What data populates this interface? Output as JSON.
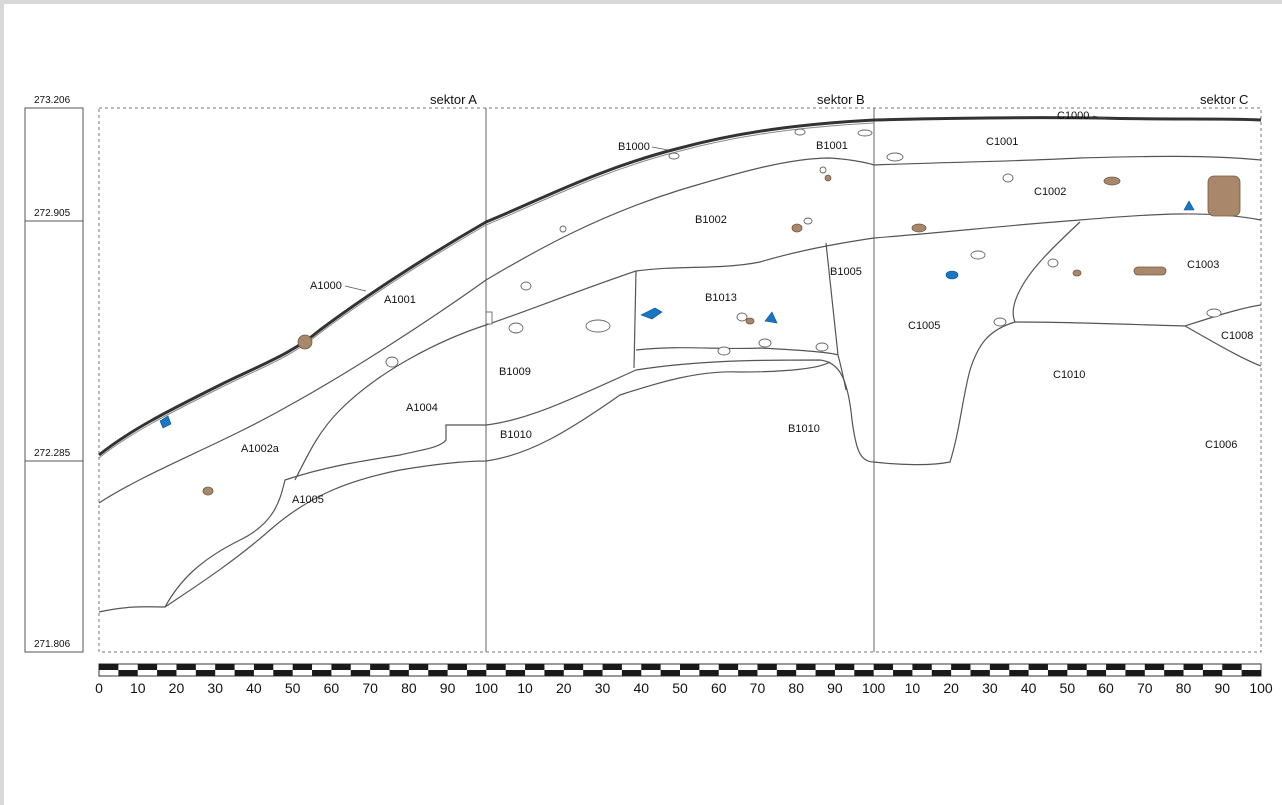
{
  "sectors": [
    "sektor A",
    "sektor B",
    "sektor C"
  ],
  "elevations": [
    "273.206",
    "272.905",
    "272.285",
    "271.806"
  ],
  "scale": {
    "ticks": [
      "0",
      "10",
      "20",
      "30",
      "40",
      "50",
      "60",
      "70",
      "80",
      "90",
      "100",
      "10",
      "20",
      "30",
      "40",
      "50",
      "60",
      "70",
      "80",
      "90",
      "100",
      "10",
      "20",
      "30",
      "40",
      "50",
      "60",
      "70",
      "80",
      "90",
      "100"
    ]
  },
  "units": {
    "A1000": "A1000",
    "A1001": "A1001",
    "A1002a": "A1002a",
    "A1004": "A1004",
    "A1005": "A1005",
    "B1000": "B1000",
    "B1001": "B1001",
    "B1002": "B1002",
    "B1005": "B1005",
    "B1009": "B1009",
    "B1010a": "B1010",
    "B1010b": "B1010",
    "B1013": "B1013",
    "C1000": "C1000",
    "C1001": "C1001",
    "C1002": "C1002",
    "C1003": "C1003",
    "C1005": "C1005",
    "C1006": "C1006",
    "C1008": "C1008",
    "C1010": "C1010"
  },
  "colors": {
    "brown_object": "#a9876a",
    "blue_object": "#1976c4",
    "outline": "#555555"
  }
}
